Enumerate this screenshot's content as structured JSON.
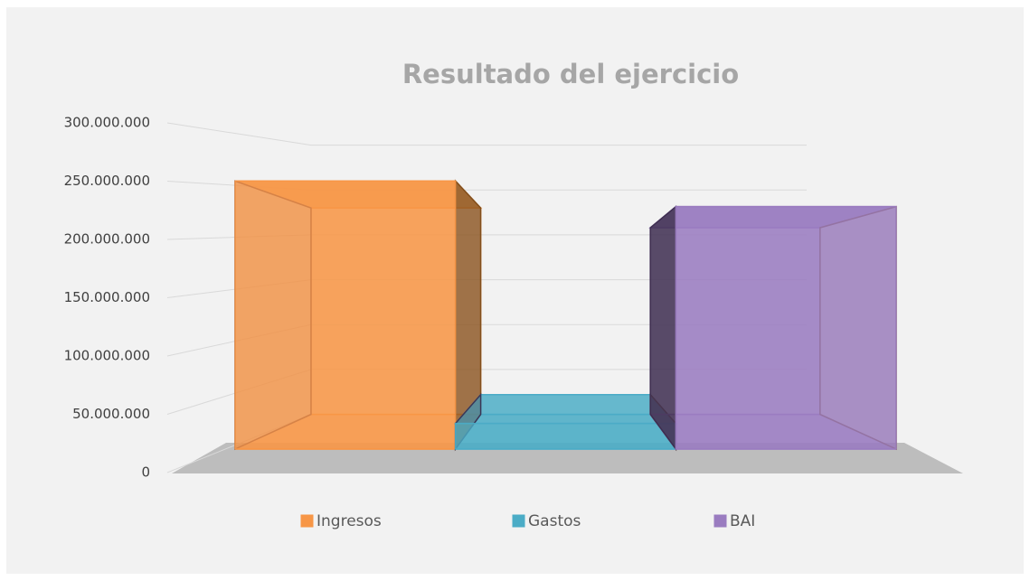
{
  "chart_data": {
    "type": "bar",
    "title": "Resultado del ejercicio",
    "series": [
      {
        "name": "Ingresos",
        "color": "#f79646",
        "values": [
          230000000
        ]
      },
      {
        "name": "Gastos",
        "color": "#4bacc6",
        "values": [
          22000000
        ]
      },
      {
        "name": "BAI",
        "color": "#9a7cc0",
        "values": [
          208000000
        ]
      }
    ],
    "ylim": [
      0,
      300000000
    ],
    "yticks": [
      {
        "value": 0,
        "label": "0"
      },
      {
        "value": 50000000,
        "label": "50.000.000"
      },
      {
        "value": 100000000,
        "label": "100.000.000"
      },
      {
        "value": 150000000,
        "label": "150.000.000"
      },
      {
        "value": 200000000,
        "label": "200.000.000"
      },
      {
        "value": 250000000,
        "label": "250.000.000"
      },
      {
        "value": 300000000,
        "label": "300.000.000"
      }
    ],
    "grid": true,
    "legend": "bottom"
  }
}
